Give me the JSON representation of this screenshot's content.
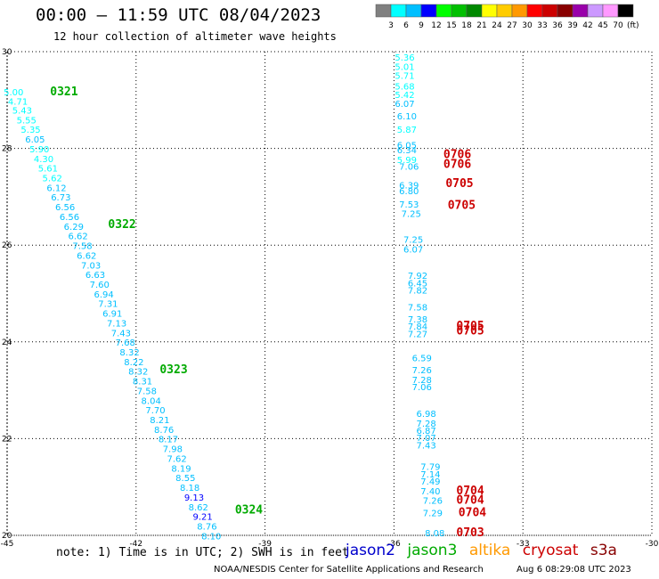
{
  "header": {
    "title": "00:00 – 11:59 UTC 08/04/2023",
    "subtitle": "12 hour collection of altimeter wave heights"
  },
  "colorbar": {
    "colors": [
      "#808080",
      "#00ffff",
      "#00bfff",
      "#0000ff",
      "#00ff00",
      "#00c000",
      "#008800",
      "#ffff00",
      "#ffcc00",
      "#ff9900",
      "#ff0000",
      "#cc0000",
      "#880000",
      "#9900aa",
      "#cc99ff",
      "#ff99ff",
      "#000000"
    ],
    "labels": [
      "3",
      "6",
      "9",
      "12",
      "15",
      "18",
      "21",
      "24",
      "27",
      "30",
      "33",
      "36",
      "39",
      "42",
      "45",
      "70"
    ],
    "unit": "(ft)"
  },
  "footer": {
    "note": "note:  1) Time is in UTC;  2) SWH is in feet",
    "legend": [
      {
        "name": "jason2",
        "color": "#0000cc"
      },
      {
        "name": "jason3",
        "color": "#00aa00"
      },
      {
        "name": "altika",
        "color": "#ff9900"
      },
      {
        "name": "cryosat",
        "color": "#cc0000"
      },
      {
        "name": "s3a",
        "color": "#880000"
      }
    ],
    "credit": "NOAA/NESDIS Center for Satellite Applications and Research",
    "timestamp": "Aug  6 08:29:08 UTC 2023"
  },
  "chart_data": {
    "type": "scatter",
    "title": "00:00 – 11:59 UTC 08/04/2023",
    "subtitle": "12 hour collection of altimeter wave heights",
    "x_range": [
      -45,
      -30
    ],
    "y_range": [
      20,
      30
    ],
    "x_ticks": [
      "-45",
      "-42",
      "-39",
      "-36",
      "-33",
      "-30"
    ],
    "y_ticks": [
      "20",
      "22",
      "24",
      "26",
      "28",
      "30"
    ],
    "y_tick_labels_printed": [
      "20",
      "22",
      "24",
      "26",
      "28",
      "30"
    ],
    "grid": true,
    "series": [
      {
        "name": "jason3",
        "color": "#00aa00",
        "points": [
          {
            "x": -44.85,
            "y": 29.1,
            "v": "5.00"
          },
          {
            "x": -44.75,
            "y": 28.9,
            "v": "4.71"
          },
          {
            "x": -44.65,
            "y": 28.72,
            "v": "5.43"
          },
          {
            "x": -44.55,
            "y": 28.52,
            "v": "5.55"
          },
          {
            "x": -44.45,
            "y": 28.32,
            "v": "5.35"
          },
          {
            "x": -44.35,
            "y": 28.12,
            "v": "6.05"
          },
          {
            "x": -44.25,
            "y": 27.92,
            "v": "5.90"
          },
          {
            "x": -44.15,
            "y": 27.72,
            "v": "4.30"
          },
          {
            "x": -44.05,
            "y": 27.52,
            "v": "5.61"
          },
          {
            "x": -43.95,
            "y": 27.32,
            "v": "5.62"
          },
          {
            "x": -43.85,
            "y": 27.12,
            "v": "6.12"
          },
          {
            "x": -43.75,
            "y": 26.92,
            "v": "6.73"
          },
          {
            "x": -43.65,
            "y": 26.72,
            "v": "6.56"
          },
          {
            "x": -43.55,
            "y": 26.52,
            "v": "6.56"
          },
          {
            "x": -43.45,
            "y": 26.32,
            "v": "6.29"
          },
          {
            "x": -43.35,
            "y": 26.12,
            "v": "6.62"
          },
          {
            "x": -43.25,
            "y": 25.92,
            "v": "7.58"
          },
          {
            "x": -43.15,
            "y": 25.72,
            "v": "6.62"
          },
          {
            "x": -43.05,
            "y": 25.52,
            "v": "7.03"
          },
          {
            "x": -42.95,
            "y": 25.32,
            "v": "6.63"
          },
          {
            "x": -42.85,
            "y": 25.12,
            "v": "7.60"
          },
          {
            "x": -42.75,
            "y": 24.92,
            "v": "6.94"
          },
          {
            "x": -42.65,
            "y": 24.72,
            "v": "7.31"
          },
          {
            "x": -42.55,
            "y": 24.52,
            "v": "6.91"
          },
          {
            "x": -42.45,
            "y": 24.32,
            "v": "7.13"
          },
          {
            "x": -42.35,
            "y": 24.12,
            "v": "7.43"
          },
          {
            "x": -42.25,
            "y": 23.92,
            "v": "7.68"
          },
          {
            "x": -42.15,
            "y": 23.72,
            "v": "8.32"
          },
          {
            "x": -42.05,
            "y": 23.52,
            "v": "8.22"
          },
          {
            "x": -41.95,
            "y": 23.32,
            "v": "8.32"
          },
          {
            "x": -41.85,
            "y": 23.12,
            "v": "8.31"
          },
          {
            "x": -41.75,
            "y": 22.92,
            "v": "7.58"
          },
          {
            "x": -41.65,
            "y": 22.72,
            "v": "8.04"
          },
          {
            "x": -41.55,
            "y": 22.52,
            "v": "7.70"
          },
          {
            "x": -41.45,
            "y": 22.32,
            "v": "8.21"
          },
          {
            "x": -41.35,
            "y": 22.12,
            "v": "8.76"
          },
          {
            "x": -41.25,
            "y": 21.92,
            "v": "8.17"
          },
          {
            "x": -41.15,
            "y": 21.72,
            "v": "7.98"
          },
          {
            "x": -41.05,
            "y": 21.52,
            "v": "7.62"
          },
          {
            "x": -40.95,
            "y": 21.32,
            "v": "8.19"
          },
          {
            "x": -40.85,
            "y": 21.12,
            "v": "8.55"
          },
          {
            "x": -40.75,
            "y": 20.92,
            "v": "8.18"
          },
          {
            "x": -40.65,
            "y": 20.72,
            "v": "9.13"
          },
          {
            "x": -40.55,
            "y": 20.52,
            "v": "8.62"
          },
          {
            "x": -40.45,
            "y": 20.32,
            "v": "9.21"
          },
          {
            "x": -40.35,
            "y": 20.12,
            "v": "8.76"
          },
          {
            "x": -40.25,
            "y": 19.92,
            "v": "8.10"
          }
        ],
        "time_labels": [
          {
            "x": -44.0,
            "y": 29.1,
            "v": "0321"
          },
          {
            "x": -42.65,
            "y": 26.35,
            "v": "0322"
          },
          {
            "x": -41.45,
            "y": 23.35,
            "v": "0323"
          },
          {
            "x": -39.7,
            "y": 20.45,
            "v": "0324"
          }
        ]
      },
      {
        "name": "cryosat",
        "color": "#cc0000",
        "points": [
          {
            "x": -35.75,
            "y": 29.82,
            "v": "5.36"
          },
          {
            "x": -35.75,
            "y": 29.62,
            "v": "5.01"
          },
          {
            "x": -35.75,
            "y": 29.44,
            "v": "5.71"
          },
          {
            "x": -35.75,
            "y": 29.22,
            "v": "5.68"
          },
          {
            "x": -35.75,
            "y": 29.04,
            "v": "5.42"
          },
          {
            "x": -35.75,
            "y": 28.86,
            "v": "6.07"
          },
          {
            "x": -35.7,
            "y": 28.6,
            "v": "6.10"
          },
          {
            "x": -35.7,
            "y": 28.32,
            "v": "5.87"
          },
          {
            "x": -35.7,
            "y": 28.0,
            "v": "6.05"
          },
          {
            "x": -35.7,
            "y": 27.9,
            "v": "6.34"
          },
          {
            "x": -35.7,
            "y": 27.7,
            "v": "5.99"
          },
          {
            "x": -35.65,
            "y": 27.56,
            "v": "7.06"
          },
          {
            "x": -35.65,
            "y": 27.17,
            "v": "6.39"
          },
          {
            "x": -35.65,
            "y": 27.05,
            "v": "6.80"
          },
          {
            "x": -35.65,
            "y": 26.78,
            "v": "7.53"
          },
          {
            "x": -35.6,
            "y": 26.58,
            "v": "7.25"
          },
          {
            "x": -35.55,
            "y": 26.05,
            "v": "7.25"
          },
          {
            "x": -35.55,
            "y": 25.85,
            "v": "6.07"
          },
          {
            "x": -35.45,
            "y": 25.3,
            "v": "7.92"
          },
          {
            "x": -35.45,
            "y": 25.15,
            "v": "6.45"
          },
          {
            "x": -35.45,
            "y": 25.0,
            "v": "7.82"
          },
          {
            "x": -35.45,
            "y": 24.65,
            "v": "7.58"
          },
          {
            "x": -35.45,
            "y": 24.4,
            "v": "7.38"
          },
          {
            "x": -35.45,
            "y": 24.25,
            "v": "7.84"
          },
          {
            "x": -35.45,
            "y": 24.1,
            "v": "7.27"
          },
          {
            "x": -35.35,
            "y": 23.6,
            "v": "6.59"
          },
          {
            "x": -35.35,
            "y": 23.35,
            "v": "7.26"
          },
          {
            "x": -35.35,
            "y": 23.15,
            "v": "7.28"
          },
          {
            "x": -35.35,
            "y": 23.0,
            "v": "7.06"
          },
          {
            "x": -35.25,
            "y": 22.45,
            "v": "6.98"
          },
          {
            "x": -35.25,
            "y": 22.25,
            "v": "7.28"
          },
          {
            "x": -35.25,
            "y": 22.1,
            "v": "6.87"
          },
          {
            "x": -35.25,
            "y": 21.95,
            "v": "7.07"
          },
          {
            "x": -35.25,
            "y": 21.8,
            "v": "7.43"
          },
          {
            "x": -35.15,
            "y": 21.35,
            "v": "7.79"
          },
          {
            "x": -35.15,
            "y": 21.2,
            "v": "7.14"
          },
          {
            "x": -35.15,
            "y": 21.05,
            "v": "7.49"
          },
          {
            "x": -35.15,
            "y": 20.85,
            "v": "7.40"
          },
          {
            "x": -35.1,
            "y": 20.65,
            "v": "7.26"
          },
          {
            "x": -35.1,
            "y": 20.4,
            "v": "7.29"
          },
          {
            "x": -35.05,
            "y": 19.98,
            "v": "8.08"
          }
        ],
        "time_labels": [
          {
            "x": -34.85,
            "y": 27.8,
            "v": "0706"
          },
          {
            "x": -34.85,
            "y": 27.6,
            "v": "0706"
          },
          {
            "x": -34.8,
            "y": 27.2,
            "v": "0705"
          },
          {
            "x": -34.75,
            "y": 26.75,
            "v": "0705"
          },
          {
            "x": -34.55,
            "y": 24.25,
            "v": "0705"
          },
          {
            "x": -34.55,
            "y": 24.15,
            "v": "0705"
          },
          {
            "x": -34.55,
            "y": 20.85,
            "v": "0704"
          },
          {
            "x": -34.55,
            "y": 20.65,
            "v": "0704"
          },
          {
            "x": -34.5,
            "y": 20.4,
            "v": "0704"
          },
          {
            "x": -34.55,
            "y": 19.98,
            "v": "0703"
          }
        ]
      }
    ]
  }
}
